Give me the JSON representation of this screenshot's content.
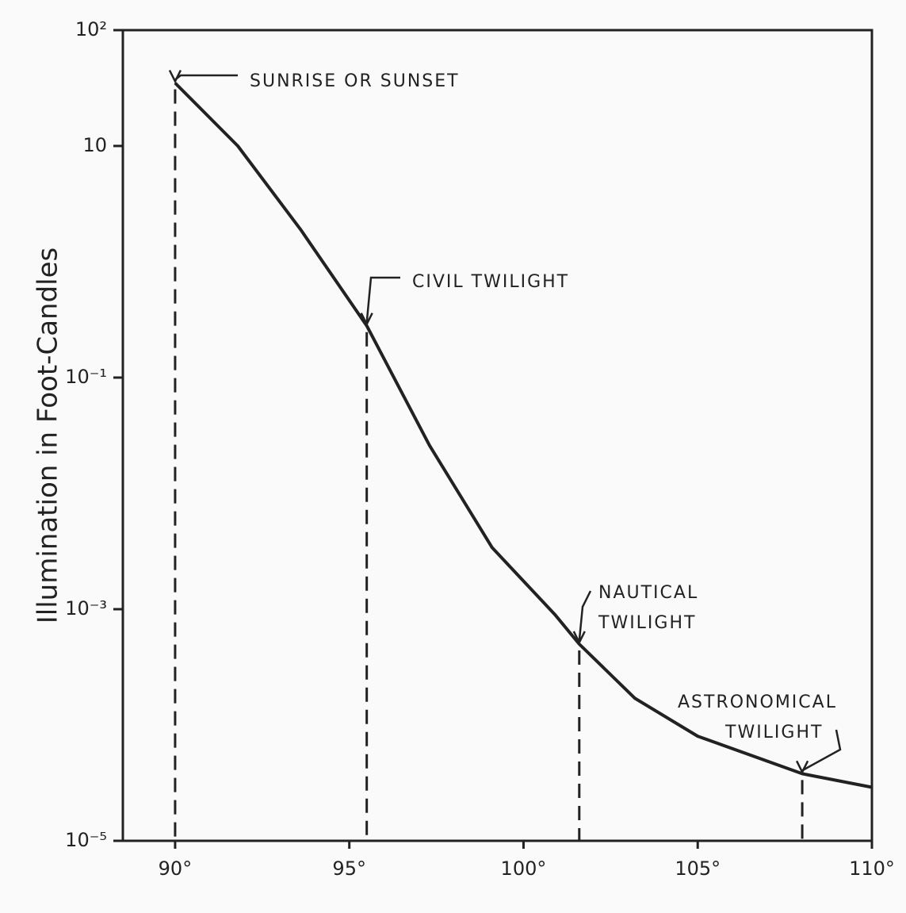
{
  "chart_data": {
    "type": "line",
    "y_label": "Illumination in Foot-Candles",
    "x": [
      90,
      91.8,
      93.6,
      95.5,
      97.3,
      99.1,
      100.9,
      101.6,
      103.2,
      105,
      108,
      110
    ],
    "values": [
      35,
      10,
      1.9,
      0.28,
      0.026,
      0.0034,
      0.0009,
      0.0005,
      0.00017,
      8e-05,
      3.8e-05,
      2.9e-05
    ],
    "color": "#222222",
    "log_y": true,
    "grid": false,
    "xlim": [
      88.5,
      110
    ],
    "xticks": [
      {
        "value": 90,
        "label": "90°"
      },
      {
        "value": 95,
        "label": "95°"
      },
      {
        "value": 100,
        "label": "100°"
      },
      {
        "value": 105,
        "label": "105°"
      },
      {
        "value": 110,
        "label": "110°"
      }
    ],
    "ylim": [
      1e-05,
      100
    ],
    "yticks": [
      {
        "value": 100,
        "label": "10²"
      },
      10,
      {
        "value": 0.1,
        "label": "10⁻¹"
      },
      {
        "value": 0.001,
        "label": "10⁻³"
      },
      {
        "value": 1e-05,
        "label": "10⁻⁵"
      }
    ],
    "annotations": [
      {
        "lines": [
          "SUNRISE OR SUNSET"
        ],
        "x": 90
      },
      {
        "lines": [
          "CIVIL TWILIGHT"
        ],
        "x": 95.5
      },
      {
        "lines": [
          "NAUTICAL",
          "TWILIGHT"
        ],
        "x": 101.6
      },
      {
        "lines": [
          "ASTRONOMICAL",
          "TWILIGHT"
        ],
        "x": 108
      }
    ]
  }
}
